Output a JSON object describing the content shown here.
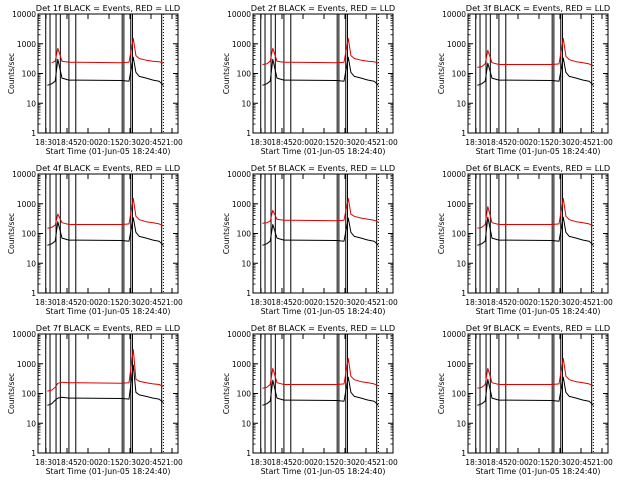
{
  "colors": {
    "background": "#ffffff",
    "axes": "#000000",
    "events": "#000000",
    "lld": "#e00000"
  },
  "chart_data": [
    {
      "type": "line",
      "panel": "Det 1f",
      "title": "Det 1f BLACK = Events, RED = LLD",
      "xlabel": "Start Time (01-Jun-05 18:24:40)",
      "ylabel": "Counts/sec",
      "yscale": "log",
      "ylim": [
        1,
        10000
      ],
      "xlim": [
        "18:24",
        "21:07"
      ],
      "xticks": [
        "18:30",
        "18:45",
        "20:00",
        "20:15",
        "20:30",
        "20:45",
        "21:00"
      ],
      "yticks": [
        "1",
        "10",
        "100",
        "1000",
        "10000"
      ],
      "x": [
        "18:35",
        "18:40",
        "18:44",
        "18:47",
        "18:52",
        "19:00",
        "19:10",
        "20:02",
        "20:10",
        "20:15",
        "20:18",
        "20:22",
        "20:30",
        "20:38",
        "20:45",
        "20:50"
      ],
      "series": [
        {
          "name": "Events",
          "color": "black",
          "values": [
            40,
            45,
            55,
            300,
            70,
            60,
            60,
            58,
            55,
            350,
            110,
            80,
            70,
            60,
            55,
            40
          ]
        },
        {
          "name": "LLD",
          "color": "red",
          "values": [
            null,
            230,
            260,
            700,
            260,
            240,
            240,
            230,
            240,
            1500,
            400,
            320,
            280,
            260,
            250,
            220
          ]
        }
      ],
      "legend": [
        "BLACK = Events",
        "RED = LLD"
      ]
    },
    {
      "type": "line",
      "panel": "Det 2f",
      "title": "Det 2f BLACK = Events, RED = LLD",
      "xlabel": "Start Time (01-Jun-05 18:24:40)",
      "ylabel": "Counts/sec",
      "yscale": "log",
      "ylim": [
        1,
        10000
      ],
      "xlim": [
        "18:24",
        "21:07"
      ],
      "xticks": [
        "18:30",
        "18:45",
        "20:00",
        "20:15",
        "20:30",
        "20:45",
        "21:00"
      ],
      "yticks": [
        "1",
        "10",
        "100",
        "1000",
        "10000"
      ],
      "x": [
        "18:35",
        "18:40",
        "18:44",
        "18:47",
        "18:52",
        "19:00",
        "19:10",
        "20:02",
        "20:10",
        "20:15",
        "20:18",
        "20:22",
        "20:30",
        "20:38",
        "20:45",
        "20:50"
      ],
      "series": [
        {
          "name": "Events",
          "color": "black",
          "values": [
            40,
            45,
            55,
            300,
            70,
            60,
            60,
            58,
            55,
            350,
            110,
            80,
            70,
            60,
            55,
            40
          ]
        },
        {
          "name": "LLD",
          "color": "red",
          "values": [
            200,
            210,
            260,
            700,
            260,
            240,
            240,
            230,
            240,
            1500,
            400,
            320,
            280,
            260,
            250,
            220
          ]
        }
      ],
      "legend": [
        "BLACK = Events",
        "RED = LLD"
      ]
    },
    {
      "type": "line",
      "panel": "Det 3f",
      "title": "Det 3f BLACK = Events, RED = LLD",
      "xlabel": "Start Time (01-Jun-05 18:24:40)",
      "ylabel": "Counts/sec",
      "yscale": "log",
      "ylim": [
        1,
        10000
      ],
      "xlim": [
        "18:24",
        "21:07"
      ],
      "xticks": [
        "18:30",
        "18:45",
        "20:00",
        "20:15",
        "20:30",
        "20:45",
        "21:00"
      ],
      "yticks": [
        "1",
        "10",
        "100",
        "1000",
        "10000"
      ],
      "x": [
        "18:35",
        "18:40",
        "18:44",
        "18:47",
        "18:52",
        "19:00",
        "19:10",
        "20:02",
        "20:10",
        "20:15",
        "20:18",
        "20:22",
        "20:30",
        "20:38",
        "20:45",
        "20:50"
      ],
      "series": [
        {
          "name": "Events",
          "color": "black",
          "values": [
            40,
            45,
            55,
            220,
            70,
            60,
            60,
            58,
            55,
            330,
            110,
            80,
            70,
            60,
            55,
            40
          ]
        },
        {
          "name": "LLD",
          "color": "red",
          "values": [
            160,
            170,
            210,
            600,
            230,
            200,
            200,
            200,
            210,
            1500,
            380,
            290,
            250,
            230,
            210,
            180
          ]
        }
      ],
      "legend": [
        "BLACK = Events",
        "RED = LLD"
      ]
    },
    {
      "type": "line",
      "panel": "Det 4f",
      "title": "Det 4f BLACK = Events, RED = LLD",
      "xlabel": "Start Time (01-Jun-05 18:24:40)",
      "ylabel": "Counts/sec",
      "yscale": "log",
      "ylim": [
        1,
        10000
      ],
      "xlim": [
        "18:24",
        "21:07"
      ],
      "xticks": [
        "18:30",
        "18:45",
        "20:00",
        "20:15",
        "20:30",
        "20:45",
        "21:00"
      ],
      "yticks": [
        "1",
        "10",
        "100",
        "1000",
        "10000"
      ],
      "x": [
        "18:35",
        "18:40",
        "18:44",
        "18:47",
        "18:52",
        "19:00",
        "19:10",
        "20:02",
        "20:10",
        "20:15",
        "20:18",
        "20:22",
        "20:30",
        "20:38",
        "20:45",
        "20:50"
      ],
      "series": [
        {
          "name": "Events",
          "color": "black",
          "values": [
            40,
            45,
            55,
            250,
            70,
            60,
            60,
            58,
            55,
            340,
            110,
            80,
            70,
            60,
            55,
            40
          ]
        },
        {
          "name": "LLD",
          "color": "red",
          "values": [
            150,
            160,
            190,
            450,
            230,
            200,
            200,
            200,
            210,
            1500,
            380,
            290,
            250,
            230,
            210,
            180
          ]
        }
      ],
      "legend": [
        "BLACK = Events",
        "RED = LLD"
      ]
    },
    {
      "type": "line",
      "panel": "Det 5f",
      "title": "Det 5f BLACK = Events, RED = LLD",
      "xlabel": "Start Time (01-Jun-05 18:24:40)",
      "ylabel": "Counts/sec",
      "yscale": "log",
      "ylim": [
        1,
        10000
      ],
      "xlim": [
        "18:24",
        "21:07"
      ],
      "xticks": [
        "18:30",
        "18:45",
        "20:00",
        "20:15",
        "20:30",
        "20:45",
        "21:00"
      ],
      "yticks": [
        "1",
        "10",
        "100",
        "1000",
        "10000"
      ],
      "x": [
        "18:35",
        "18:40",
        "18:44",
        "18:47",
        "18:52",
        "19:00",
        "19:10",
        "20:02",
        "20:10",
        "20:15",
        "20:18",
        "20:22",
        "20:30",
        "20:38",
        "20:45",
        "20:50"
      ],
      "series": [
        {
          "name": "Events",
          "color": "black",
          "values": [
            40,
            45,
            55,
            200,
            70,
            60,
            60,
            58,
            55,
            330,
            110,
            80,
            70,
            60,
            55,
            40
          ]
        },
        {
          "name": "LLD",
          "color": "red",
          "values": [
            220,
            230,
            260,
            600,
            300,
            280,
            280,
            270,
            280,
            1500,
            450,
            380,
            330,
            300,
            280,
            240
          ]
        }
      ],
      "legend": [
        "BLACK = Events",
        "RED = LLD"
      ]
    },
    {
      "type": "line",
      "panel": "Det 6f",
      "title": "Det 6f BLACK = Events, RED = LLD",
      "xlabel": "Start Time (01-Jun-05 18:24:40)",
      "ylabel": "Counts/sec",
      "yscale": "log",
      "ylim": [
        1,
        10000
      ],
      "xlim": [
        "18:24",
        "21:07"
      ],
      "xticks": [
        "18:30",
        "18:45",
        "20:00",
        "20:15",
        "20:30",
        "20:45",
        "21:00"
      ],
      "yticks": [
        "1",
        "10",
        "100",
        "1000",
        "10000"
      ],
      "x": [
        "18:35",
        "18:40",
        "18:44",
        "18:47",
        "18:52",
        "19:00",
        "19:10",
        "20:02",
        "20:10",
        "20:15",
        "20:18",
        "20:22",
        "20:30",
        "20:38",
        "20:45",
        "20:50"
      ],
      "series": [
        {
          "name": "Events",
          "color": "black",
          "values": [
            40,
            45,
            55,
            350,
            70,
            60,
            60,
            58,
            55,
            350,
            110,
            80,
            70,
            60,
            55,
            40
          ]
        },
        {
          "name": "LLD",
          "color": "red",
          "values": [
            150,
            160,
            200,
            800,
            230,
            200,
            200,
            200,
            210,
            1500,
            380,
            290,
            250,
            230,
            210,
            180
          ]
        }
      ],
      "legend": [
        "BLACK = Events",
        "RED = LLD"
      ]
    },
    {
      "type": "line",
      "panel": "Det 7f",
      "title": "Det 7f BLACK = Events, RED = LLD",
      "xlabel": "Start Time (01-Jun-05 18:24:40)",
      "ylabel": "Counts/sec",
      "yscale": "log",
      "ylim": [
        1,
        10000
      ],
      "xlim": [
        "18:24",
        "21:07"
      ],
      "xticks": [
        "18:30",
        "18:45",
        "20:00",
        "20:15",
        "20:30",
        "20:45",
        "21:00"
      ],
      "yticks": [
        "1",
        "10",
        "100",
        "1000",
        "10000"
      ],
      "x": [
        "18:35",
        "18:40",
        "18:44",
        "18:47",
        "18:52",
        "19:00",
        "19:10",
        "20:02",
        "20:10",
        "20:15",
        "20:18",
        "20:22",
        "20:30",
        "20:38",
        "20:45",
        "20:50"
      ],
      "series": [
        {
          "name": "Events",
          "color": "black",
          "values": [
            40,
            45,
            60,
            70,
            75,
            70,
            70,
            68,
            65,
            900,
            110,
            90,
            80,
            70,
            65,
            50
          ]
        },
        {
          "name": "LLD",
          "color": "red",
          "values": [
            120,
            130,
            160,
            220,
            240,
            230,
            230,
            220,
            230,
            3000,
            300,
            260,
            230,
            210,
            200,
            170
          ]
        }
      ],
      "legend": [
        "BLACK = Events",
        "RED = LLD"
      ]
    },
    {
      "type": "line",
      "panel": "Det 8f",
      "title": "Det 8f BLACK = Events, RED = LLD",
      "xlabel": "Start Time (01-Jun-05 18:24:40)",
      "ylabel": "Counts/sec",
      "yscale": "log",
      "ylim": [
        1,
        10000
      ],
      "xlim": [
        "18:24",
        "21:07"
      ],
      "xticks": [
        "18:30",
        "18:45",
        "20:00",
        "20:15",
        "20:30",
        "20:45",
        "21:00"
      ],
      "yticks": [
        "1",
        "10",
        "100",
        "1000",
        "10000"
      ],
      "x": [
        "18:35",
        "18:40",
        "18:44",
        "18:47",
        "18:52",
        "19:00",
        "19:10",
        "20:02",
        "20:10",
        "20:15",
        "20:18",
        "20:22",
        "20:30",
        "20:38",
        "20:45",
        "20:50"
      ],
      "series": [
        {
          "name": "Events",
          "color": "black",
          "values": [
            40,
            45,
            55,
            280,
            70,
            60,
            60,
            58,
            55,
            350,
            110,
            80,
            70,
            60,
            55,
            40
          ]
        },
        {
          "name": "LLD",
          "color": "red",
          "values": [
            150,
            160,
            200,
            700,
            230,
            200,
            200,
            200,
            210,
            1500,
            380,
            290,
            250,
            230,
            210,
            180
          ]
        }
      ],
      "legend": [
        "BLACK = Events",
        "RED = LLD"
      ]
    },
    {
      "type": "line",
      "panel": "Det 9f",
      "title": "Det 9f BLACK = Events, RED = LLD",
      "xlabel": "Start Time (01-Jun-05 18:24:40)",
      "ylabel": "Counts/sec",
      "yscale": "log",
      "ylim": [
        1,
        10000
      ],
      "xlim": [
        "18:24",
        "21:07"
      ],
      "xticks": [
        "18:30",
        "18:45",
        "20:00",
        "20:15",
        "20:30",
        "20:45",
        "21:00"
      ],
      "yticks": [
        "1",
        "10",
        "100",
        "1000",
        "10000"
      ],
      "x": [
        "18:35",
        "18:40",
        "18:44",
        "18:47",
        "18:52",
        "19:00",
        "19:10",
        "20:02",
        "20:10",
        "20:15",
        "20:18",
        "20:22",
        "20:30",
        "20:38",
        "20:45",
        "20:50"
      ],
      "series": [
        {
          "name": "Events",
          "color": "black",
          "values": [
            40,
            45,
            55,
            300,
            70,
            60,
            60,
            58,
            55,
            350,
            110,
            80,
            70,
            60,
            55,
            40
          ]
        },
        {
          "name": "LLD",
          "color": "red",
          "values": [
            150,
            160,
            200,
            700,
            230,
            200,
            200,
            200,
            210,
            1500,
            380,
            290,
            250,
            230,
            210,
            180
          ]
        }
      ],
      "legend": [
        "BLACK = Events",
        "RED = LLD"
      ]
    }
  ]
}
